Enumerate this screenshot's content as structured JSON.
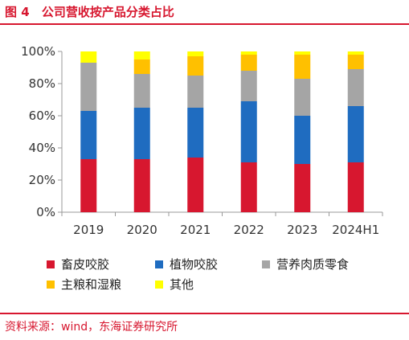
{
  "figure": {
    "number": "图 4",
    "title": "公司营收按产品分类占比"
  },
  "source": "资料来源：wind，东海证券研究所",
  "chart_data": {
    "type": "bar",
    "stacked": true,
    "categories": [
      "2019",
      "2020",
      "2021",
      "2022",
      "2023",
      "2024H1"
    ],
    "series": [
      {
        "name": "畜皮咬胶",
        "color": "#d7172f",
        "values": [
          33,
          33,
          34,
          31,
          30,
          31
        ]
      },
      {
        "name": "植物咬胶",
        "color": "#1f6cc0",
        "values": [
          30,
          32,
          31,
          38,
          30,
          35
        ]
      },
      {
        "name": "营养肉质零食",
        "color": "#a5a5a5",
        "values": [
          30,
          21,
          20,
          19,
          23,
          23
        ]
      },
      {
        "name": "主粮和湿粮",
        "color": "#ffc000",
        "values": [
          0,
          9,
          12,
          10,
          15,
          9
        ]
      },
      {
        "name": "其他",
        "color": "#ffff00",
        "values": [
          7,
          5,
          3,
          2,
          2,
          2
        ]
      }
    ],
    "ylim": [
      0,
      100
    ],
    "yticks": [
      "0%",
      "20%",
      "40%",
      "60%",
      "80%",
      "100%"
    ],
    "grid": false,
    "legend_position": "bottom"
  }
}
